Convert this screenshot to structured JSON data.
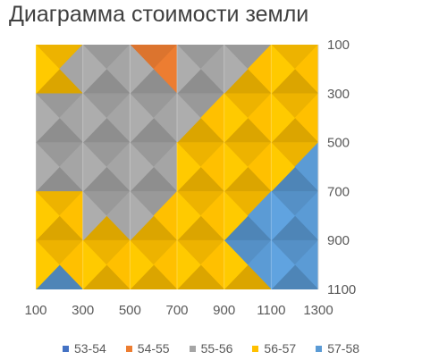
{
  "chart_data": {
    "type": "heatmap",
    "title": "Диаграмма стоимости земли",
    "xlabel": "",
    "ylabel": "",
    "x": [
      100,
      300,
      500,
      700,
      900,
      1100,
      1300
    ],
    "y": [
      100,
      300,
      500,
      700,
      900,
      1100
    ],
    "xlim": [
      100,
      1300
    ],
    "ylim": [
      100,
      1100
    ],
    "y_axis_position": "right",
    "x_ticks": [
      "100",
      "300",
      "500",
      "700",
      "900",
      "1100",
      "1300"
    ],
    "y_ticks": [
      "100",
      "300",
      "500",
      "700",
      "900",
      "1100"
    ],
    "levels": [
      {
        "name": "53-54",
        "min": 53,
        "max": 54,
        "color": "#4472c4"
      },
      {
        "name": "54-55",
        "min": 54,
        "max": 55,
        "color": "#ed7d31"
      },
      {
        "name": "55-56",
        "min": 55,
        "max": 56,
        "color": "#a5a5a5"
      },
      {
        "name": "56-57",
        "min": 56,
        "max": 57,
        "color": "#ffc000"
      },
      {
        "name": "57-58",
        "min": 57,
        "max": 58,
        "color": "#5b9bd5"
      }
    ],
    "values": [
      [
        56.3,
        56.2,
        54.4,
        54.3,
        55.5,
        56.2,
        56.8
      ],
      [
        56.5,
        55.6,
        55.7,
        55.5,
        56.1,
        56.5,
        56.9
      ],
      [
        55.2,
        55.6,
        55.7,
        55.6,
        56.5,
        56.7,
        56.9
      ],
      [
        56.5,
        55.6,
        55.5,
        56.2,
        56.6,
        57.2,
        57.5
      ],
      [
        56.6,
        56.3,
        56.2,
        56.5,
        56.7,
        57.4,
        57.6
      ],
      [
        57.4,
        56.9,
        56.6,
        56.5,
        56.6,
        57.3,
        57.6
      ]
    ],
    "legend_position": "bottom",
    "grid": true
  }
}
